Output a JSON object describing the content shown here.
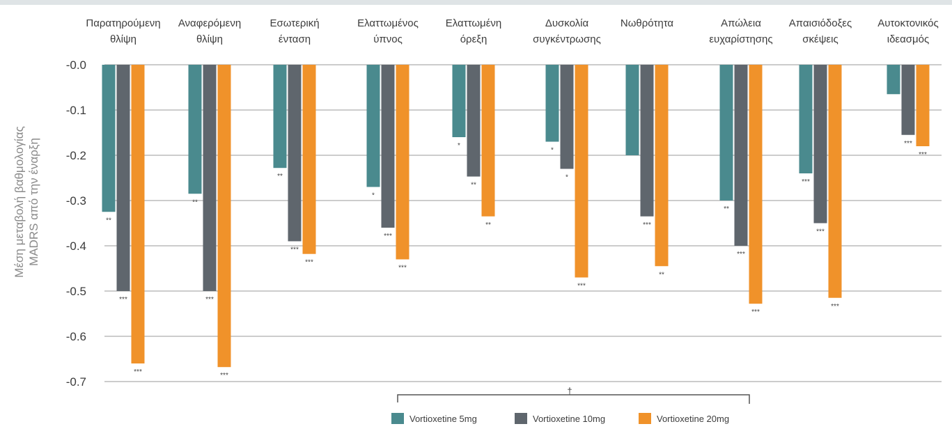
{
  "chart_data": {
    "type": "bar",
    "y_label_lines": [
      "Μέση μεταβολή βαθμολογίας",
      "MADRS από την έναρξη"
    ],
    "ylim": [
      -0.7,
      0
    ],
    "y_ticks": [
      {
        "value": 0,
        "label": "-0.0"
      },
      {
        "value": -0.1,
        "label": "-0.1"
      },
      {
        "value": -0.2,
        "label": "-0.2"
      },
      {
        "value": -0.3,
        "label": "-0.3"
      },
      {
        "value": -0.4,
        "label": "-0.4"
      },
      {
        "value": -0.5,
        "label": "-0.5"
      },
      {
        "value": -0.6,
        "label": "-0.6"
      },
      {
        "value": -0.7,
        "label": "-0.7"
      }
    ],
    "grid": true,
    "categories": [
      [
        "Παρατηρούμενη",
        "θλίψη"
      ],
      [
        "Αναφερόμενη",
        "θλίψη"
      ],
      [
        "Εσωτερική",
        "ένταση"
      ],
      [
        "Ελαττωμένος",
        "ύπνος"
      ],
      [
        "Ελαττωμένη",
        "όρεξη"
      ],
      [
        "Δυσκολία",
        "συγκέντρωσης"
      ],
      [
        "Νωθρότητα"
      ],
      [
        "Απώλεια",
        "ευχαρίστησης"
      ],
      [
        "Απαισιόδοξες",
        "σκέψεις"
      ],
      [
        "Αυτοκτονικός",
        "ιδεασμός"
      ]
    ],
    "series": [
      {
        "name": "Vortioxetine 5mg",
        "color": "#4a8a8e",
        "values": [
          -0.325,
          -0.285,
          -0.228,
          -0.27,
          -0.16,
          -0.17,
          -0.2,
          -0.3,
          -0.24,
          -0.065
        ],
        "significance": [
          "**",
          "**",
          "**",
          "*",
          "*",
          "*",
          "",
          "**",
          "***",
          ""
        ]
      },
      {
        "name": "Vortioxetine 10mg",
        "color": "#5f666d",
        "values": [
          -0.5,
          -0.5,
          -0.39,
          -0.36,
          -0.247,
          -0.23,
          -0.335,
          -0.4,
          -0.35,
          -0.155
        ],
        "significance": [
          "***",
          "***",
          "***",
          "***",
          "**",
          "*",
          "***",
          "***",
          "***",
          "***"
        ]
      },
      {
        "name": "Vortioxetine 20mg",
        "color": "#f0922a",
        "values": [
          -0.66,
          -0.668,
          -0.418,
          -0.43,
          -0.335,
          -0.47,
          -0.445,
          -0.528,
          -0.515,
          -0.18
        ],
        "significance": [
          "***",
          "***",
          "***",
          "***",
          "**",
          "***",
          "**",
          "***",
          "***",
          "***"
        ]
      }
    ],
    "legend_position": "bottom-center",
    "annotation": "†"
  }
}
